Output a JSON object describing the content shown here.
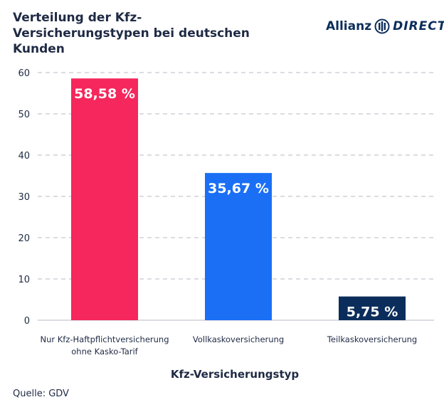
{
  "title": "Verteilung der Kfz-Versicherungstypen bei deutschen Kunden",
  "logo": {
    "brand": "Allianz",
    "sub": "DIRECT"
  },
  "source": "Quelle: GDV",
  "colors": {
    "bar1": "#f5275c",
    "bar2": "#1a6ff5",
    "bar3": "#0b2d5b",
    "grid": "#b8b8c4"
  },
  "chart_data": {
    "type": "bar",
    "categories": [
      [
        "Nur Kfz-Haftpflichtversicherung",
        "ohne Kasko-Tarif"
      ],
      [
        "Vollkaskoversicherung"
      ],
      [
        "Teilkaskoversicherung"
      ]
    ],
    "values": [
      58.58,
      35.67,
      5.75
    ],
    "value_labels": [
      "58,58 %",
      "35,67 %",
      "5,75 %"
    ],
    "xlabel": "Kfz-Versicherungstyp",
    "ylabel": "",
    "ylim": [
      0,
      60
    ],
    "yticks": [
      0,
      10,
      20,
      30,
      40,
      50,
      60
    ],
    "grid": true
  }
}
